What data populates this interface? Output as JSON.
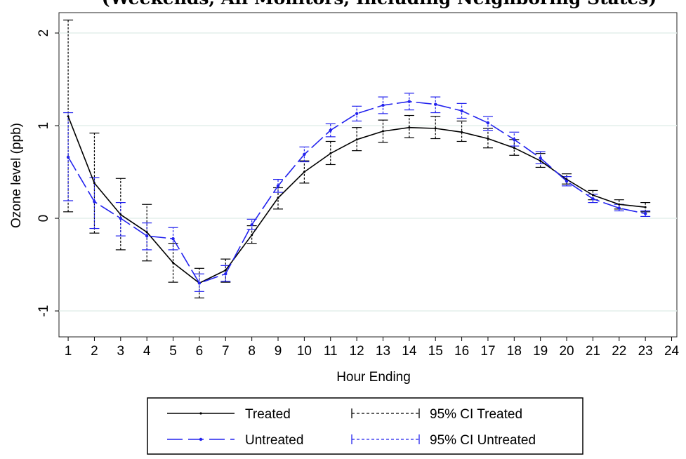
{
  "chart_data": {
    "type": "line",
    "title": "(Weekends, All Monitors, Including Neighboring States)",
    "xlabel": "Hour Ending",
    "ylabel": "Ozone level (ppb)",
    "x_ticks": [
      1,
      2,
      3,
      4,
      5,
      6,
      7,
      8,
      9,
      10,
      11,
      12,
      13,
      14,
      15,
      16,
      17,
      18,
      19,
      20,
      21,
      22,
      23,
      24
    ],
    "y_ticks": [
      -1,
      0,
      1,
      2
    ],
    "xlim": [
      0.65,
      24.2
    ],
    "ylim": [
      -1.28,
      2.22
    ],
    "grid": true,
    "colors": {
      "treated": "#000000",
      "untreated": "#2222ee",
      "grid": "#e4efec",
      "plot_border": "#222222"
    },
    "series": [
      {
        "name": "Treated",
        "key": "treated",
        "x": [
          1,
          2,
          3,
          4,
          5,
          6,
          7,
          8,
          9,
          10,
          11,
          12,
          13,
          14,
          15,
          16,
          17,
          18,
          19,
          20,
          21,
          22,
          23
        ],
        "y": [
          1.1,
          0.38,
          0.04,
          -0.15,
          -0.48,
          -0.7,
          -0.56,
          -0.18,
          0.22,
          0.5,
          0.7,
          0.85,
          0.94,
          0.98,
          0.97,
          0.93,
          0.86,
          0.76,
          0.62,
          0.42,
          0.25,
          0.15,
          0.12
        ],
        "ci_low": [
          0.07,
          -0.16,
          -0.34,
          -0.46,
          -0.69,
          -0.86,
          -0.69,
          -0.27,
          0.1,
          0.38,
          0.58,
          0.73,
          0.82,
          0.87,
          0.86,
          0.83,
          0.76,
          0.68,
          0.55,
          0.37,
          0.2,
          0.1,
          0.07
        ],
        "ci_high": [
          2.14,
          0.92,
          0.43,
          0.15,
          -0.27,
          -0.54,
          -0.44,
          -0.08,
          0.33,
          0.62,
          0.83,
          0.98,
          1.06,
          1.11,
          1.1,
          1.05,
          0.97,
          0.85,
          0.7,
          0.48,
          0.3,
          0.2,
          0.17
        ]
      },
      {
        "name": "Untreated",
        "key": "untreated",
        "x": [
          1,
          2,
          3,
          4,
          5,
          6,
          7,
          8,
          9,
          10,
          11,
          12,
          13,
          14,
          15,
          16,
          17,
          18,
          19,
          20,
          21,
          22,
          23
        ],
        "y": [
          0.66,
          0.18,
          0.0,
          -0.19,
          -0.22,
          -0.7,
          -0.6,
          -0.07,
          0.35,
          0.69,
          0.95,
          1.13,
          1.22,
          1.26,
          1.23,
          1.16,
          1.03,
          0.85,
          0.65,
          0.4,
          0.21,
          0.11,
          0.05
        ],
        "ci_low": [
          0.19,
          -0.11,
          -0.19,
          -0.34,
          -0.34,
          -0.79,
          -0.68,
          -0.12,
          0.28,
          0.61,
          0.88,
          1.05,
          1.13,
          1.17,
          1.14,
          1.08,
          0.95,
          0.78,
          0.59,
          0.35,
          0.17,
          0.08,
          0.02
        ],
        "ci_high": [
          1.14,
          0.44,
          0.17,
          -0.05,
          -0.1,
          -0.6,
          -0.51,
          -0.01,
          0.42,
          0.77,
          1.02,
          1.21,
          1.31,
          1.35,
          1.31,
          1.24,
          1.1,
          0.93,
          0.72,
          0.45,
          0.26,
          0.15,
          0.08
        ]
      }
    ],
    "legend": {
      "position": "bottom",
      "entries": [
        "Treated",
        "95% CI Treated",
        "Untreated",
        "95% CI Untreated"
      ]
    }
  }
}
